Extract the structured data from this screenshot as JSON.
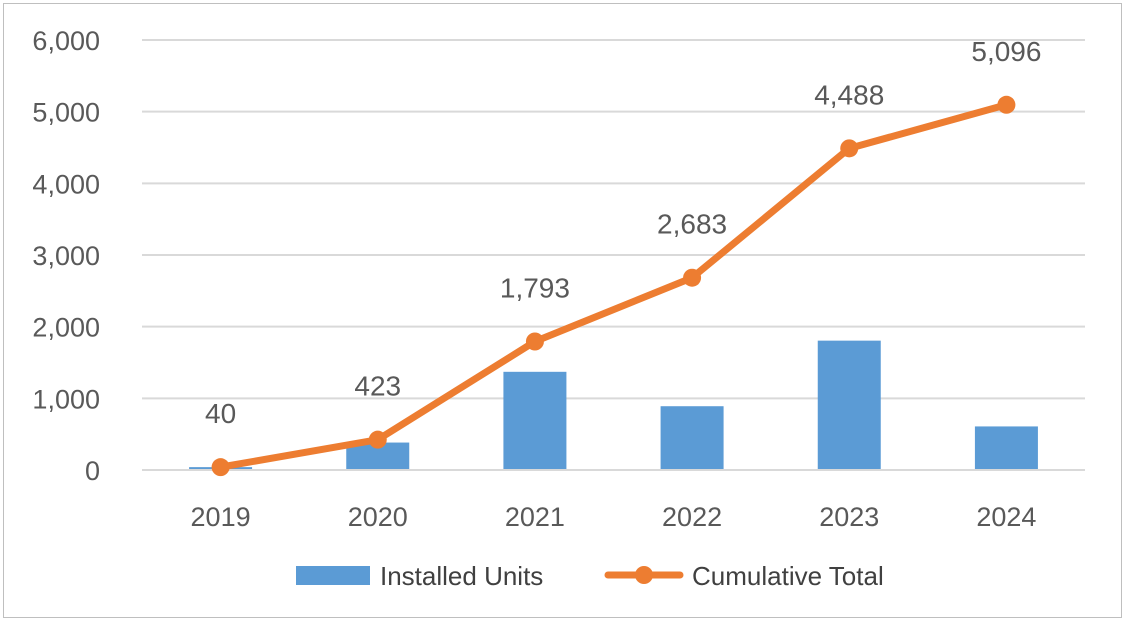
{
  "chart_data": {
    "type": "bar+line",
    "categories": [
      "2019",
      "2020",
      "2021",
      "2022",
      "2023",
      "2024"
    ],
    "series": [
      {
        "name": "Installed Units",
        "type": "bar",
        "color": "#5b9bd5",
        "values": [
          40,
          383,
          1370,
          890,
          1805,
          608
        ]
      },
      {
        "name": "Cumulative Total",
        "type": "line",
        "color": "#ed7d31",
        "values": [
          40,
          423,
          1793,
          2683,
          4488,
          5096
        ],
        "data_labels": [
          "40",
          "423",
          "1,793",
          "2,683",
          "4,488",
          "5,096"
        ]
      }
    ],
    "ylim": [
      0,
      6000
    ],
    "yticks": [
      0,
      1000,
      2000,
      3000,
      4000,
      5000,
      6000
    ],
    "ytick_labels": [
      "0",
      "1,000",
      "2,000",
      "3,000",
      "4,000",
      "5,000",
      "6,000"
    ],
    "grid": true,
    "legend_position": "bottom",
    "title": "",
    "xlabel": "",
    "ylabel": ""
  }
}
